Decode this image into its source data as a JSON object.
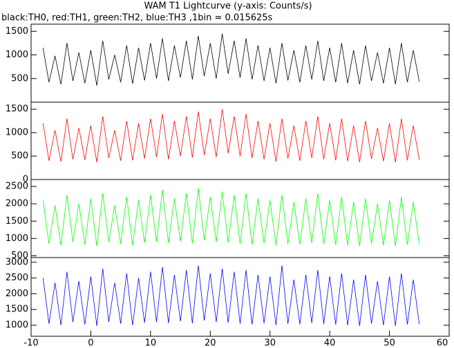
{
  "chart_data": [
    {
      "type": "line",
      "title": "WAM T1 Lightcurve (y-axis: Counts/s)",
      "subtitle": "black:TH0, red:TH1, green:TH2, blue:TH3 ,1bin = 0.015625s",
      "color": "#000000",
      "x": [
        -8,
        -7,
        -6,
        -5,
        -4,
        -3,
        -2,
        -1,
        0,
        1,
        2,
        3,
        4,
        5,
        6,
        7,
        8,
        9,
        10,
        11,
        12,
        13,
        14,
        15,
        16,
        17,
        18,
        19,
        20,
        21,
        22,
        23,
        24,
        25,
        26,
        27,
        28,
        29,
        30,
        31,
        32,
        33,
        34,
        35,
        36,
        37,
        38,
        39,
        40,
        41,
        42,
        43,
        44,
        45,
        46,
        47,
        48,
        49,
        50,
        51,
        52,
        53,
        54,
        55
      ],
      "values": [
        1150,
        420,
        980,
        380,
        1250,
        450,
        1050,
        400,
        1100,
        350,
        1300,
        480,
        1000,
        420,
        1200,
        390,
        1150,
        460,
        1250,
        500,
        1350,
        450,
        1200,
        520,
        1300,
        480,
        1400,
        550,
        1250,
        500,
        1450,
        600,
        1300,
        520,
        1350,
        480,
        1200,
        450,
        1150,
        400,
        1250,
        460,
        1100,
        420,
        1200,
        480,
        1300,
        450,
        1150,
        420,
        1250,
        400,
        1100,
        380,
        1200,
        450,
        1050,
        400,
        1150,
        380,
        1250,
        420,
        1100,
        430
      ],
      "xlim": [
        -10,
        60
      ],
      "ylim": [
        0,
        1650
      ],
      "yticks": [
        500,
        1000,
        1500
      ]
    },
    {
      "type": "line",
      "color": "#ff0000",
      "x": [
        -8,
        -7,
        -6,
        -5,
        -4,
        -3,
        -2,
        -1,
        0,
        1,
        2,
        3,
        4,
        5,
        6,
        7,
        8,
        9,
        10,
        11,
        12,
        13,
        14,
        15,
        16,
        17,
        18,
        19,
        20,
        21,
        22,
        23,
        24,
        25,
        26,
        27,
        28,
        29,
        30,
        31,
        32,
        33,
        34,
        35,
        36,
        37,
        38,
        39,
        40,
        41,
        42,
        43,
        44,
        45,
        46,
        47,
        48,
        49,
        50,
        51,
        52,
        53,
        54,
        55
      ],
      "values": [
        1200,
        400,
        1050,
        380,
        1300,
        430,
        1100,
        420,
        1150,
        370,
        1350,
        460,
        1050,
        400,
        1250,
        410,
        1200,
        450,
        1300,
        480,
        1400,
        430,
        1250,
        500,
        1350,
        470,
        1450,
        520,
        1300,
        480,
        1500,
        560,
        1350,
        500,
        1400,
        460,
        1250,
        430,
        1200,
        380,
        1300,
        450,
        1150,
        400,
        1250,
        460,
        1350,
        430,
        1200,
        410,
        1300,
        390,
        1150,
        370,
        1250,
        440,
        1100,
        390,
        1200,
        370,
        1300,
        410,
        1150,
        420
      ],
      "xlim": [
        -10,
        60
      ],
      "ylim": [
        0,
        1650
      ],
      "yticks": [
        0,
        500,
        1000,
        1500
      ]
    },
    {
      "type": "line",
      "color": "#00ff00",
      "x": [
        -8,
        -7,
        -6,
        -5,
        -4,
        -3,
        -2,
        -1,
        0,
        1,
        2,
        3,
        4,
        5,
        6,
        7,
        8,
        9,
        10,
        11,
        12,
        13,
        14,
        15,
        16,
        17,
        18,
        19,
        20,
        21,
        22,
        23,
        24,
        25,
        26,
        27,
        28,
        29,
        30,
        31,
        32,
        33,
        34,
        35,
        36,
        37,
        38,
        39,
        40,
        41,
        42,
        43,
        44,
        45,
        46,
        47,
        48,
        49,
        50,
        51,
        52,
        53,
        54,
        55
      ],
      "values": [
        2100,
        850,
        1950,
        800,
        2250,
        900,
        2000,
        820,
        2150,
        780,
        2300,
        900,
        1950,
        850,
        2200,
        800,
        2100,
        880,
        2250,
        900,
        2400,
        870,
        2150,
        920,
        2300,
        860,
        2450,
        950,
        2200,
        900,
        2350,
        880,
        2250,
        850,
        2300,
        820,
        2150,
        860,
        2100,
        800,
        2250,
        850,
        2050,
        830,
        2150,
        870,
        2300,
        840,
        2100,
        820,
        2200,
        800,
        2050,
        780,
        2150,
        850,
        2000,
        800,
        2100,
        780,
        2200,
        820,
        2050,
        830
      ],
      "xlim": [
        -10,
        60
      ],
      "ylim": [
        450,
        2700
      ],
      "yticks": [
        500,
        1000,
        1500,
        2000,
        2500
      ]
    },
    {
      "type": "line",
      "color": "#0000ff",
      "x": [
        -8,
        -7,
        -6,
        -5,
        -4,
        -3,
        -2,
        -1,
        0,
        1,
        2,
        3,
        4,
        5,
        6,
        7,
        8,
        9,
        10,
        11,
        12,
        13,
        14,
        15,
        16,
        17,
        18,
        19,
        20,
        21,
        22,
        23,
        24,
        25,
        26,
        27,
        28,
        29,
        30,
        31,
        32,
        33,
        34,
        35,
        36,
        37,
        38,
        39,
        40,
        41,
        42,
        43,
        44,
        45,
        46,
        47,
        48,
        49,
        50,
        51,
        52,
        53,
        54,
        55
      ],
      "values": [
        2500,
        1050,
        2350,
        1000,
        2700,
        1100,
        2400,
        1020,
        2550,
        980,
        2800,
        1100,
        2350,
        1050,
        2650,
        1000,
        2500,
        1080,
        2700,
        1100,
        2850,
        1070,
        2600,
        1120,
        2750,
        1060,
        2900,
        1150,
        2650,
        1100,
        2800,
        1080,
        2700,
        1050,
        2750,
        1020,
        2600,
        1060,
        2550,
        1000,
        2900,
        1050,
        2450,
        1030,
        2600,
        1070,
        2750,
        1040,
        2550,
        1020,
        2650,
        1000,
        2450,
        980,
        2600,
        1050,
        2400,
        1000,
        2550,
        980,
        2650,
        1020,
        2450,
        1030
      ],
      "xlim": [
        -10,
        60
      ],
      "ylim": [
        650,
        3150
      ],
      "yticks": [
        1000,
        1500,
        2000,
        2500,
        3000
      ],
      "xticks": [
        -10,
        0,
        10,
        20,
        30,
        40,
        50,
        60
      ]
    }
  ]
}
